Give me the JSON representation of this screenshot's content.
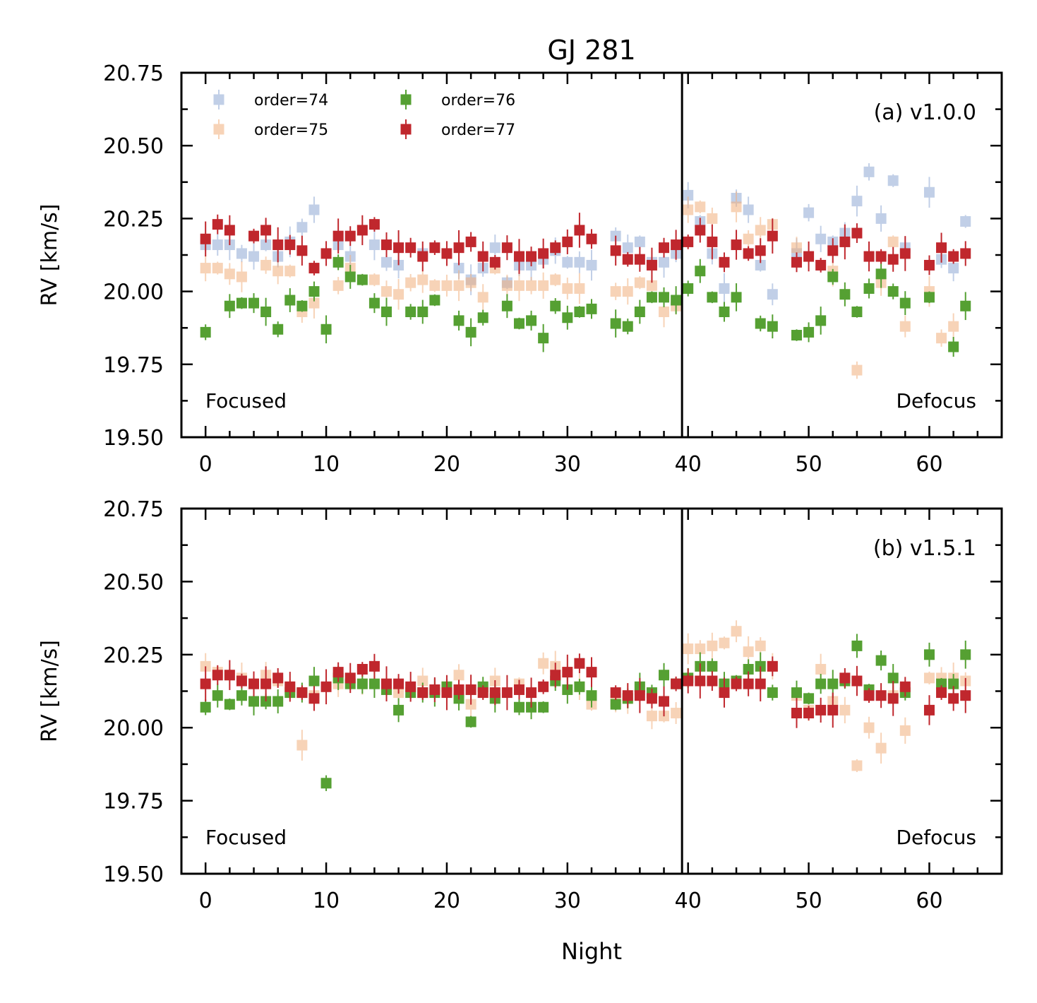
{
  "figure": {
    "title": "GJ 281",
    "xlabel": "Night",
    "x_ticks": [
      0,
      10,
      20,
      30,
      40,
      50,
      60
    ],
    "y_ticks": [
      "19.50",
      "19.75",
      "20.00",
      "20.25",
      "20.50",
      "20.75"
    ]
  },
  "legend": {
    "entries": [
      "order=74",
      "order=75",
      "order=76",
      "order=77"
    ],
    "placement": "upper-left, 2 columns"
  },
  "colors": {
    "order74": "#8fa9d4",
    "order75": "#f2b07e",
    "order76": "#55a032",
    "order77": "#c0272d",
    "divider": "#000000"
  },
  "chart_data": [
    {
      "type": "scatter",
      "panel_label": "(a) v1.0.0",
      "xlabel": "",
      "ylabel": "RV [km/s]",
      "xlim": [
        -2,
        66
      ],
      "ylim": [
        19.5,
        20.75
      ],
      "vline_x": 39.5,
      "region_labels": [
        "Focused",
        "Defocus"
      ],
      "series": [
        {
          "name": "order=74",
          "x": [
            0,
            1,
            2,
            3,
            4,
            5,
            6,
            7,
            8,
            9,
            11,
            12,
            14,
            15,
            16,
            18,
            21,
            22,
            23,
            24,
            25,
            26,
            27,
            28,
            29,
            30,
            31,
            32,
            34,
            35,
            36,
            37,
            38,
            39,
            40,
            41,
            42,
            43,
            44,
            45,
            46,
            47,
            49,
            50,
            51,
            52,
            53,
            54,
            55,
            56,
            57,
            58,
            60,
            61,
            62,
            63
          ],
          "y": [
            20.16,
            20.16,
            20.16,
            20.13,
            20.12,
            20.16,
            20.12,
            20.17,
            20.22,
            20.28,
            20.16,
            20.12,
            20.16,
            20.1,
            20.09,
            20.13,
            20.08,
            20.04,
            20.08,
            20.15,
            20.03,
            20.09,
            20.09,
            20.11,
            20.14,
            20.1,
            20.1,
            20.09,
            20.19,
            20.15,
            20.17,
            20.1,
            20.1,
            20.13,
            20.33,
            20.24,
            20.13,
            20.01,
            20.32,
            20.28,
            20.09,
            19.99,
            20.13,
            20.27,
            20.18,
            20.17,
            20.2,
            20.31,
            20.41,
            20.25,
            20.38,
            20.15,
            20.34,
            20.11,
            20.08,
            20.24
          ]
        },
        {
          "name": "order=75",
          "x": [
            0,
            1,
            2,
            3,
            5,
            6,
            7,
            8,
            9,
            11,
            12,
            14,
            15,
            16,
            17,
            18,
            19,
            20,
            21,
            22,
            23,
            24,
            25,
            26,
            27,
            28,
            29,
            30,
            31,
            34,
            35,
            36,
            37,
            38,
            39,
            40,
            41,
            42,
            44,
            45,
            46,
            47,
            49,
            52,
            54,
            56,
            57,
            58,
            60,
            61,
            62
          ],
          "y": [
            20.08,
            20.08,
            20.06,
            20.05,
            20.09,
            20.07,
            20.07,
            19.93,
            19.96,
            20.02,
            20.08,
            20.04,
            20.0,
            19.99,
            20.03,
            20.04,
            20.02,
            20.02,
            20.02,
            20.03,
            19.98,
            20.08,
            20.02,
            20.02,
            20.02,
            20.02,
            20.04,
            20.01,
            20.01,
            20.0,
            20.0,
            20.03,
            20.02,
            19.93,
            19.95,
            20.28,
            20.29,
            20.25,
            20.29,
            20.18,
            20.21,
            20.23,
            20.15,
            20.07,
            19.73,
            20.03,
            20.17,
            19.88,
            20.0,
            19.84,
            19.88
          ]
        },
        {
          "name": "order=76",
          "x": [
            0,
            2,
            3,
            4,
            5,
            6,
            7,
            8,
            9,
            10,
            11,
            12,
            13,
            14,
            15,
            17,
            18,
            19,
            21,
            22,
            23,
            25,
            26,
            27,
            28,
            29,
            30,
            31,
            32,
            34,
            35,
            36,
            37,
            38,
            39,
            40,
            41,
            42,
            43,
            44,
            46,
            47,
            49,
            50,
            51,
            52,
            53,
            54,
            55,
            56,
            57,
            58,
            60,
            62,
            63
          ],
          "y": [
            19.86,
            19.95,
            19.96,
            19.96,
            19.93,
            19.87,
            19.97,
            19.95,
            20.0,
            19.87,
            20.1,
            20.05,
            20.04,
            19.96,
            19.93,
            19.93,
            19.93,
            19.97,
            19.9,
            19.86,
            19.91,
            19.95,
            19.89,
            19.9,
            19.84,
            19.95,
            19.91,
            19.93,
            19.94,
            19.89,
            19.88,
            19.93,
            19.98,
            19.98,
            19.97,
            20.01,
            20.07,
            19.98,
            19.93,
            19.98,
            19.89,
            19.88,
            19.85,
            19.86,
            19.9,
            20.05,
            19.99,
            19.93,
            20.01,
            20.06,
            20.0,
            19.96,
            19.98,
            19.81,
            19.95
          ]
        },
        {
          "name": "order=77",
          "x": [
            0,
            1,
            2,
            4,
            5,
            6,
            7,
            8,
            9,
            10,
            11,
            12,
            13,
            14,
            15,
            16,
            17,
            18,
            19,
            20,
            21,
            22,
            23,
            24,
            25,
            26,
            27,
            28,
            29,
            30,
            31,
            32,
            34,
            35,
            36,
            37,
            38,
            39,
            40,
            41,
            42,
            43,
            44,
            45,
            46,
            47,
            49,
            50,
            51,
            52,
            53,
            54,
            55,
            56,
            57,
            58,
            60,
            61,
            62,
            63
          ],
          "y": [
            20.18,
            20.23,
            20.21,
            20.19,
            20.21,
            20.16,
            20.16,
            20.14,
            20.08,
            20.13,
            20.19,
            20.19,
            20.21,
            20.23,
            20.16,
            20.15,
            20.15,
            20.12,
            20.15,
            20.13,
            20.15,
            20.17,
            20.12,
            20.1,
            20.15,
            20.12,
            20.12,
            20.13,
            20.15,
            20.17,
            20.21,
            20.18,
            20.14,
            20.11,
            20.11,
            20.09,
            20.15,
            20.16,
            20.17,
            20.21,
            20.17,
            20.1,
            20.16,
            20.13,
            20.14,
            20.19,
            20.1,
            20.12,
            20.09,
            20.14,
            20.17,
            20.2,
            20.12,
            20.12,
            20.11,
            20.13,
            20.09,
            20.15,
            20.12,
            20.13
          ]
        }
      ]
    },
    {
      "type": "scatter",
      "panel_label": "(b) v1.5.1",
      "xlabel": "Night",
      "ylabel": "RV [km/s]",
      "xlim": [
        -2,
        66
      ],
      "ylim": [
        19.5,
        20.75
      ],
      "vline_x": 39.5,
      "region_labels": [
        "Focused",
        "Defocus"
      ],
      "series": [
        {
          "name": "order=74",
          "x": [],
          "y": []
        },
        {
          "name": "order=75",
          "x": [
            0,
            1,
            2,
            3,
            4,
            5,
            6,
            7,
            8,
            9,
            11,
            12,
            13,
            15,
            16,
            18,
            20,
            21,
            22,
            23,
            24,
            26,
            28,
            29,
            30,
            31,
            32,
            34,
            35,
            36,
            37,
            38,
            39,
            40,
            41,
            42,
            43,
            44,
            45,
            46,
            47,
            49,
            50,
            51,
            52,
            53,
            54,
            55,
            56,
            57,
            58,
            60,
            61,
            62,
            63
          ],
          "y": [
            20.21,
            20.19,
            20.18,
            20.17,
            20.15,
            20.18,
            20.16,
            20.13,
            19.94,
            20.11,
            20.15,
            20.17,
            20.15,
            20.15,
            20.12,
            20.16,
            20.14,
            20.18,
            20.08,
            20.13,
            20.16,
            20.15,
            20.22,
            20.21,
            20.19,
            20.14,
            20.08,
            20.09,
            20.1,
            20.13,
            20.04,
            20.04,
            20.05,
            20.27,
            20.27,
            20.28,
            20.29,
            20.33,
            20.26,
            20.28,
            20.21,
            20.11,
            20.06,
            20.2,
            20.09,
            20.06,
            19.87,
            20.0,
            19.93,
            20.11,
            19.99,
            20.17,
            20.17,
            20.17,
            20.16
          ]
        },
        {
          "name": "order=76",
          "x": [
            0,
            1,
            2,
            3,
            4,
            5,
            6,
            7,
            8,
            9,
            10,
            11,
            12,
            13,
            14,
            15,
            16,
            17,
            18,
            19,
            20,
            21,
            22,
            23,
            24,
            26,
            27,
            28,
            29,
            30,
            31,
            32,
            34,
            35,
            36,
            37,
            38,
            39,
            40,
            41,
            42,
            43,
            44,
            45,
            46,
            47,
            49,
            50,
            51,
            52,
            53,
            54,
            55,
            56,
            57,
            58,
            60,
            61,
            62,
            63
          ],
          "y": [
            20.07,
            20.11,
            20.08,
            20.11,
            20.09,
            20.09,
            20.09,
            20.12,
            20.12,
            20.16,
            19.81,
            20.17,
            20.15,
            20.15,
            20.15,
            20.13,
            20.06,
            20.12,
            20.12,
            20.12,
            20.14,
            20.1,
            20.02,
            20.14,
            20.1,
            20.07,
            20.07,
            20.07,
            20.16,
            20.13,
            20.14,
            20.11,
            20.08,
            20.1,
            20.14,
            20.12,
            20.18,
            20.15,
            20.17,
            20.21,
            20.21,
            20.15,
            20.16,
            20.2,
            20.21,
            20.12,
            20.12,
            20.1,
            20.15,
            20.15,
            20.16,
            20.28,
            20.13,
            20.23,
            20.17,
            20.12,
            20.25,
            20.15,
            20.15,
            20.25
          ]
        },
        {
          "name": "order=77",
          "x": [
            0,
            1,
            2,
            3,
            4,
            5,
            6,
            7,
            8,
            9,
            10,
            11,
            12,
            13,
            14,
            15,
            16,
            17,
            18,
            19,
            20,
            21,
            22,
            23,
            24,
            25,
            26,
            27,
            28,
            29,
            30,
            31,
            32,
            34,
            35,
            36,
            37,
            38,
            39,
            40,
            41,
            42,
            43,
            44,
            45,
            46,
            47,
            49,
            50,
            51,
            52,
            53,
            54,
            55,
            56,
            57,
            58,
            60,
            61,
            62,
            63
          ],
          "y": [
            20.15,
            20.18,
            20.18,
            20.16,
            20.15,
            20.15,
            20.17,
            20.14,
            20.12,
            20.1,
            20.14,
            20.19,
            20.17,
            20.2,
            20.21,
            20.15,
            20.15,
            20.14,
            20.12,
            20.13,
            20.12,
            20.13,
            20.13,
            20.12,
            20.12,
            20.12,
            20.13,
            20.12,
            20.14,
            20.18,
            20.19,
            20.22,
            20.19,
            20.12,
            20.11,
            20.11,
            20.1,
            20.09,
            20.15,
            20.16,
            20.16,
            20.16,
            20.12,
            20.15,
            20.15,
            20.15,
            20.21,
            20.05,
            20.05,
            20.06,
            20.06,
            20.17,
            20.16,
            20.11,
            20.11,
            20.1,
            20.14,
            20.06,
            20.12,
            20.1,
            20.11
          ]
        }
      ]
    }
  ]
}
